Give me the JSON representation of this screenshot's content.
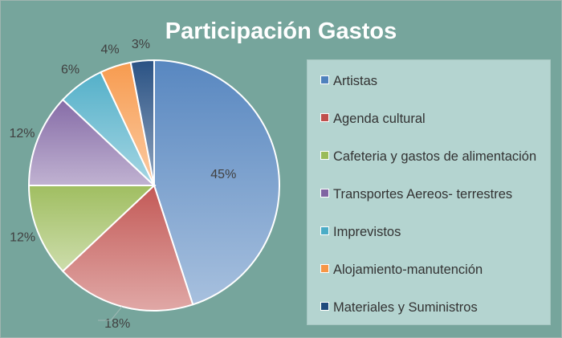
{
  "chart_data": {
    "type": "pie",
    "title": "Participación Gastos",
    "categories": [
      "Artistas",
      "Agenda cultural",
      "Cafeteria y gastos de alimentación",
      "Transportes Aereos- terrestres",
      "Imprevistos",
      "Alojamiento-manutención",
      "Materiales y Suministros"
    ],
    "values": [
      45,
      18,
      12,
      12,
      6,
      4,
      3
    ],
    "data_labels": [
      "45%",
      "18%",
      "12%",
      "12%",
      "6%",
      "4%",
      "3%"
    ],
    "colors": [
      "#4f81bd",
      "#c0504d",
      "#9bbb59",
      "#8064a2",
      "#4bacc6",
      "#f79646",
      "#1f497d"
    ],
    "legend_position": "right"
  }
}
